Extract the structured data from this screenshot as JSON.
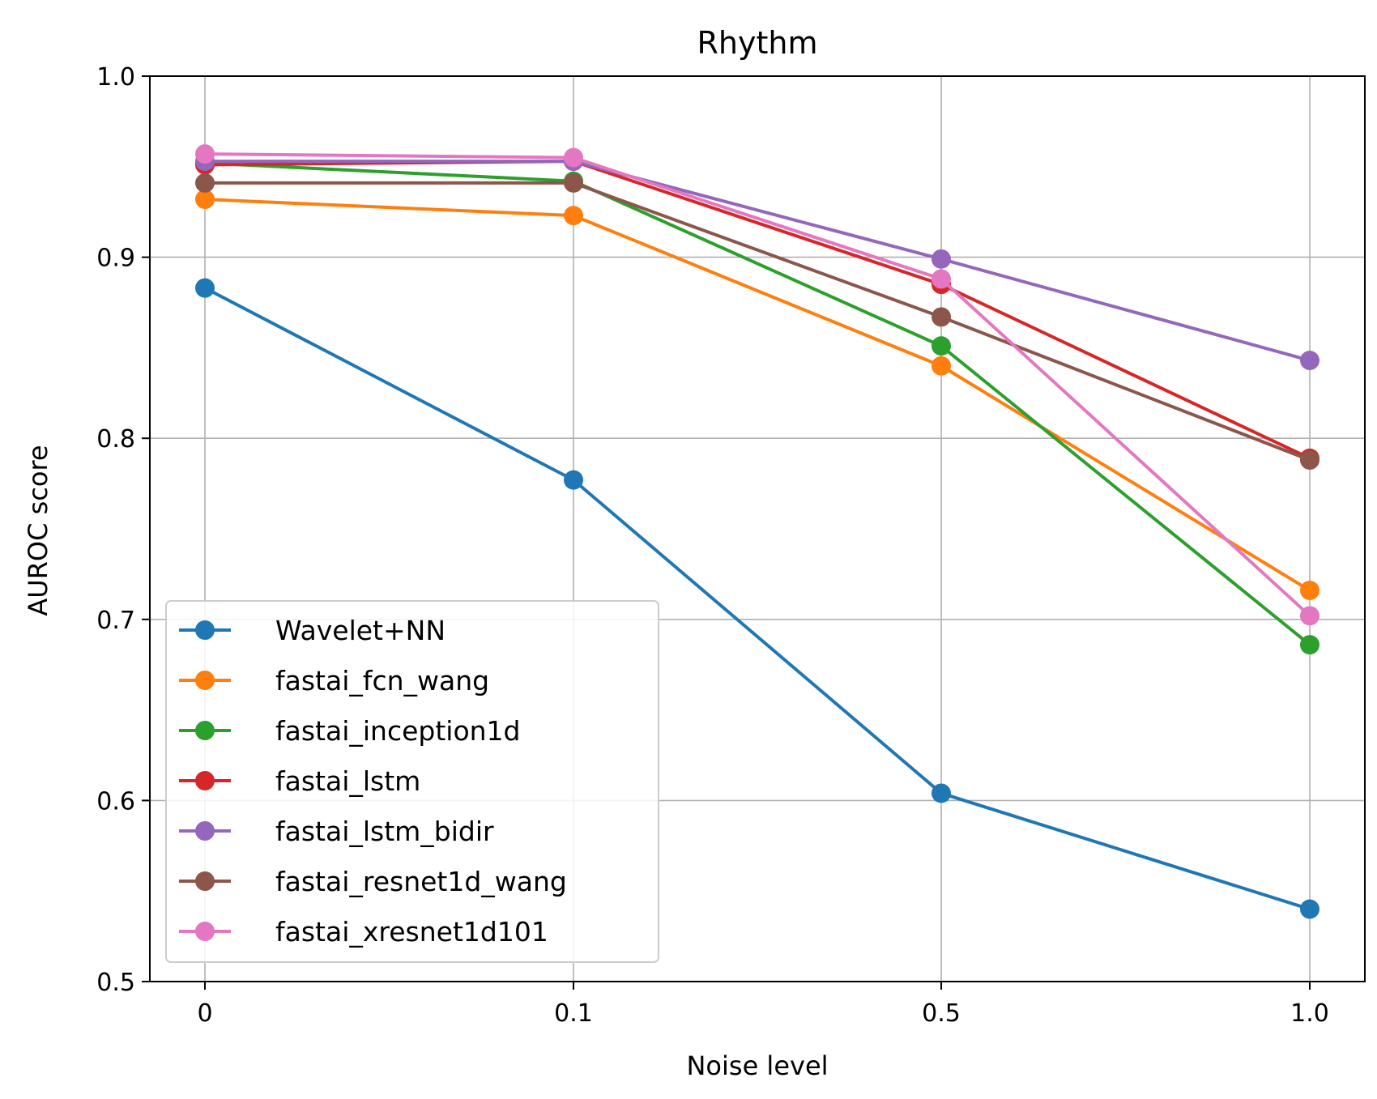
{
  "chart_data": {
    "type": "line",
    "title": "Rhythm",
    "xlabel": "Noise level",
    "ylabel": "AUROC score",
    "categories": [
      "0",
      "0.1",
      "0.5",
      "1.0"
    ],
    "ylim": [
      0.5,
      1.0
    ],
    "yticks": [
      "0.5",
      "0.6",
      "0.7",
      "0.8",
      "0.9",
      "1.0"
    ],
    "grid": true,
    "legend_position": "lower-left",
    "series": [
      {
        "name": "Wavelet+NN",
        "color": "#1f77b4",
        "values": [
          0.883,
          0.777,
          0.604,
          0.54
        ]
      },
      {
        "name": "fastai_fcn_wang",
        "color": "#ff7f0e",
        "values": [
          0.932,
          0.923,
          0.84,
          0.716
        ]
      },
      {
        "name": "fastai_inception1d",
        "color": "#2ca02c",
        "values": [
          0.952,
          0.942,
          0.851,
          0.686
        ]
      },
      {
        "name": "fastai_lstm",
        "color": "#d62728",
        "values": [
          0.951,
          0.953,
          0.885,
          0.789
        ]
      },
      {
        "name": "fastai_lstm_bidir",
        "color": "#9467bd",
        "values": [
          0.953,
          0.953,
          0.899,
          0.843
        ]
      },
      {
        "name": "fastai_resnet1d_wang",
        "color": "#8c564b",
        "values": [
          0.941,
          0.941,
          0.867,
          0.788
        ]
      },
      {
        "name": "fastai_xresnet1d101",
        "color": "#e377c2",
        "values": [
          0.957,
          0.955,
          0.888,
          0.702
        ]
      }
    ]
  }
}
